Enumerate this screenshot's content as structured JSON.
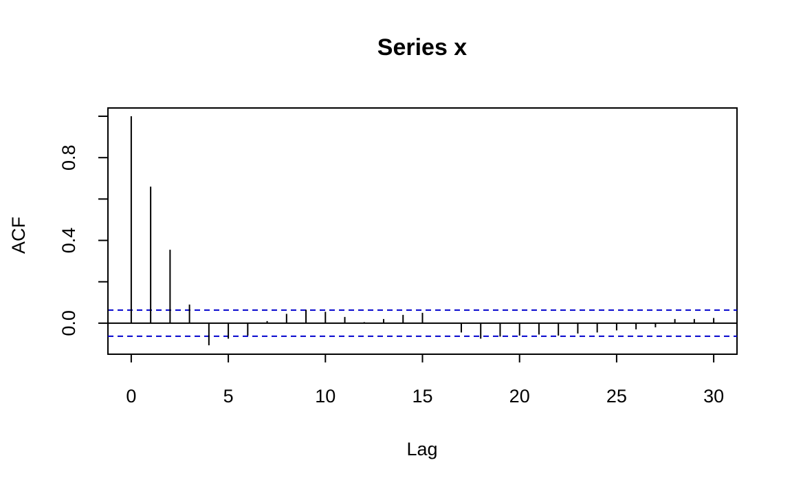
{
  "chart_data": {
    "type": "bar",
    "title": "Series  x",
    "xlabel": "Lag",
    "ylabel": "ACF",
    "xlim": [
      -1.2,
      31.2
    ],
    "ylim": [
      -0.15,
      1.04
    ],
    "x_ticks": [
      0,
      5,
      10,
      15,
      20,
      25,
      30
    ],
    "x_tick_labels": [
      "0",
      "5",
      "10",
      "15",
      "20",
      "25",
      "30"
    ],
    "y_ticks": [
      0.0,
      0.2,
      0.4,
      0.6,
      0.8,
      1.0
    ],
    "y_tick_labels": [
      "0.0",
      "",
      "0.4",
      "",
      "0.8",
      ""
    ],
    "confidence_bound": 0.063,
    "confidence_color": "#0000cd",
    "series": [
      {
        "lags": [
          0,
          1,
          2,
          3,
          4,
          5,
          6,
          7,
          8,
          9,
          10,
          11,
          12,
          13,
          14,
          15,
          16,
          17,
          18,
          19,
          20,
          21,
          22,
          23,
          24,
          25,
          26,
          27,
          28,
          29,
          30
        ],
        "values": [
          1.0,
          0.66,
          0.355,
          0.09,
          -0.107,
          -0.075,
          -0.06,
          0.01,
          0.045,
          0.065,
          0.055,
          0.03,
          0.005,
          0.02,
          0.04,
          0.05,
          0.0,
          -0.045,
          -0.075,
          -0.065,
          -0.06,
          -0.055,
          -0.06,
          -0.05,
          -0.045,
          -0.035,
          -0.03,
          -0.02,
          0.02,
          0.02,
          0.025
        ]
      }
    ]
  }
}
